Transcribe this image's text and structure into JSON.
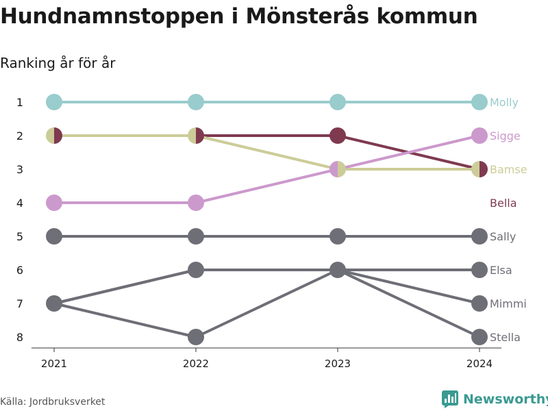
{
  "title": "Hundnamnstoppen i Mönsterås kommun",
  "subtitle": "Ranking år för år",
  "source": "Källa: Jordbruksverket",
  "brand": {
    "name": "Newsworthy",
    "icon": "bar-chart-icon",
    "color": "#3a9a92"
  },
  "chart_data": {
    "type": "line",
    "categories": [
      "2021",
      "2022",
      "2023",
      "2024"
    ],
    "y_axis": {
      "ticks": [
        "1",
        "2",
        "3",
        "4",
        "5",
        "6",
        "7",
        "8"
      ],
      "reversed": true,
      "ylim": [
        1,
        8
      ]
    },
    "grid": false,
    "legend": "right end labels",
    "series": [
      {
        "name": "Molly",
        "values": [
          1,
          1,
          1,
          1
        ],
        "color": "#99cccc"
      },
      {
        "name": "Sigge",
        "values": [
          4,
          4,
          3,
          2
        ],
        "color": "#cc99cc"
      },
      {
        "name": "Bamse",
        "values": [
          2,
          2,
          3,
          3
        ],
        "color": "#cccc99"
      },
      {
        "name": "Bella",
        "values": [
          2,
          2,
          2,
          3
        ],
        "color": "#7f3a50"
      },
      {
        "name": "Sally",
        "values": [
          5,
          5,
          5,
          5
        ],
        "color": "#6e6e76"
      },
      {
        "name": "Elsa",
        "values": [
          7,
          6,
          6,
          6
        ],
        "color": "#6e6e76"
      },
      {
        "name": "Mimmi",
        "values": [
          7,
          8,
          6,
          7
        ],
        "color": "#6e6e76"
      },
      {
        "name": "Stella",
        "values": [
          7,
          6,
          6,
          8
        ],
        "color": "#6e6e76"
      }
    ]
  }
}
